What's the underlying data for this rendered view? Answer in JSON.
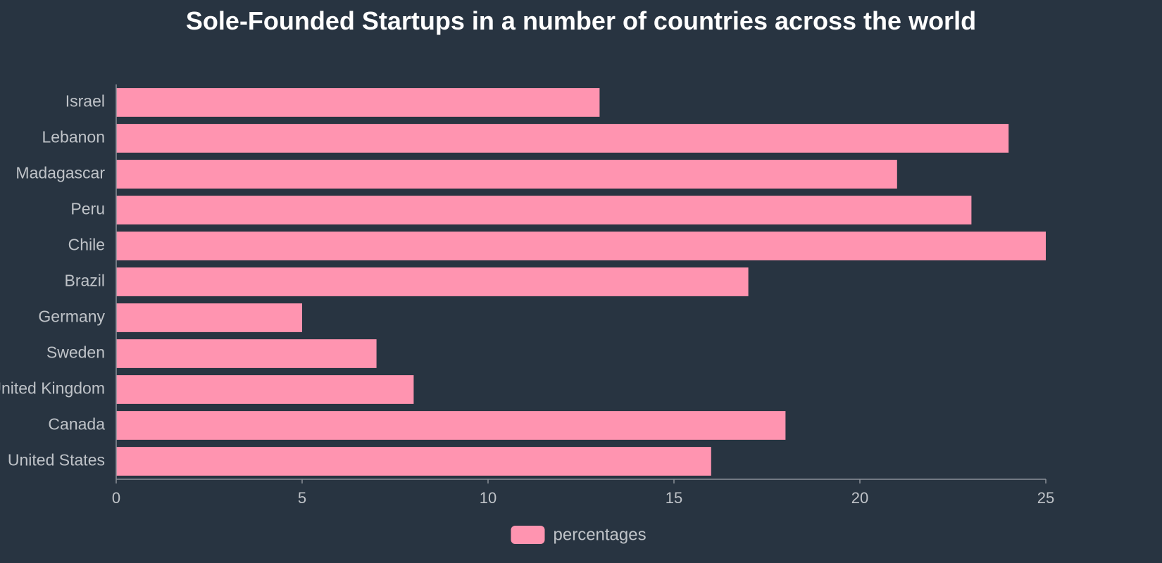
{
  "chart_data": {
    "type": "bar",
    "orientation": "horizontal",
    "title": "Sole-Founded Startups in a number of countries across the world",
    "categories": [
      "Israel",
      "Lebanon",
      "Madagascar",
      "Peru",
      "Chile",
      "Brazil",
      "Germany",
      "Sweden",
      "United Kingdom",
      "Canada",
      "United States"
    ],
    "series": [
      {
        "name": "percentages",
        "values": [
          13,
          24,
          21,
          23,
          25,
          17,
          5,
          7,
          8,
          18,
          16
        ],
        "color": "#ff94b0"
      }
    ],
    "xlim": [
      0,
      25
    ],
    "xticks": [
      "0",
      "5",
      "10",
      "15",
      "20",
      "25"
    ],
    "xlabel": "",
    "ylabel": "",
    "grid": false,
    "legend": {
      "position": "bottom",
      "entries": [
        "percentages"
      ]
    }
  },
  "colors": {
    "background": "#283441",
    "bar": "#ff94b0",
    "axis": "#8a9099",
    "text": "#bfc3c8",
    "title": "#ffffff"
  }
}
